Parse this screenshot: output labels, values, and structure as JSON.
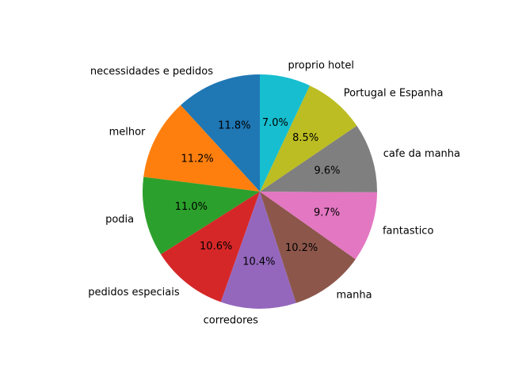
{
  "chart_data": {
    "type": "pie",
    "title": "",
    "categories": [
      "necessidades e pedidos",
      "melhor",
      "podia",
      "pedidos especiais",
      "corredores",
      "manha",
      "fantastico",
      "cafe da manha",
      "Portugal e Espanha",
      "proprio hotel"
    ],
    "values": [
      11.8,
      11.2,
      11.0,
      10.6,
      10.4,
      10.2,
      9.7,
      9.6,
      8.5,
      7.0
    ],
    "labels": [
      "11.8%",
      "11.2%",
      "11.0%",
      "10.6%",
      "10.4%",
      "10.2%",
      "9.7%",
      "9.6%",
      "8.5%",
      "7.0%"
    ],
    "colors": [
      "#1f77b4",
      "#ff7f0e",
      "#2ca02c",
      "#d62728",
      "#9467bd",
      "#8c564b",
      "#e377c2",
      "#7f7f7f",
      "#bcbd22",
      "#17becf"
    ],
    "start_angle_deg": 90,
    "direction": "counterclockwise",
    "legend": "none"
  }
}
